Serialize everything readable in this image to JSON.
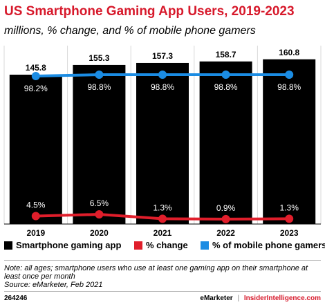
{
  "chart_data": {
    "type": "bar",
    "title": "US Smartphone Gaming App Users, 2019-2023",
    "subtitle": "millions, % change, and % of mobile phone gamers",
    "categories": [
      "2019",
      "2020",
      "2021",
      "2022",
      "2023"
    ],
    "series": [
      {
        "name": "Smartphone gaming app",
        "type": "bar",
        "color": "#000000",
        "values": [
          145.8,
          155.3,
          157.3,
          158.7,
          160.8
        ],
        "labels": [
          "145.8",
          "155.3",
          "157.3",
          "158.7",
          "160.8"
        ]
      },
      {
        "name": "% change",
        "type": "line",
        "color": "#e01e2b",
        "values": [
          4.5,
          6.5,
          1.3,
          0.9,
          1.3
        ],
        "labels": [
          "4.5%",
          "6.5%",
          "1.3%",
          "0.9%",
          "1.3%"
        ]
      },
      {
        "name": "% of mobile phone gamers",
        "type": "line",
        "color": "#1b8ce3",
        "values": [
          98.2,
          98.8,
          98.8,
          98.8,
          98.8
        ],
        "labels": [
          "98.2%",
          "98.8%",
          "98.8%",
          "98.8%",
          "98.8%"
        ]
      }
    ],
    "legend_position": "bottom"
  },
  "note": "Note: all ages; smartphone users who use at least one gaming app on their smartphone at least once per month",
  "source": "Source: eMarketer, Feb 2021",
  "chart_id": "264246",
  "footer": {
    "brand": "eMarketer",
    "separator": "|",
    "brand2": "InsiderIntelligence.com"
  }
}
